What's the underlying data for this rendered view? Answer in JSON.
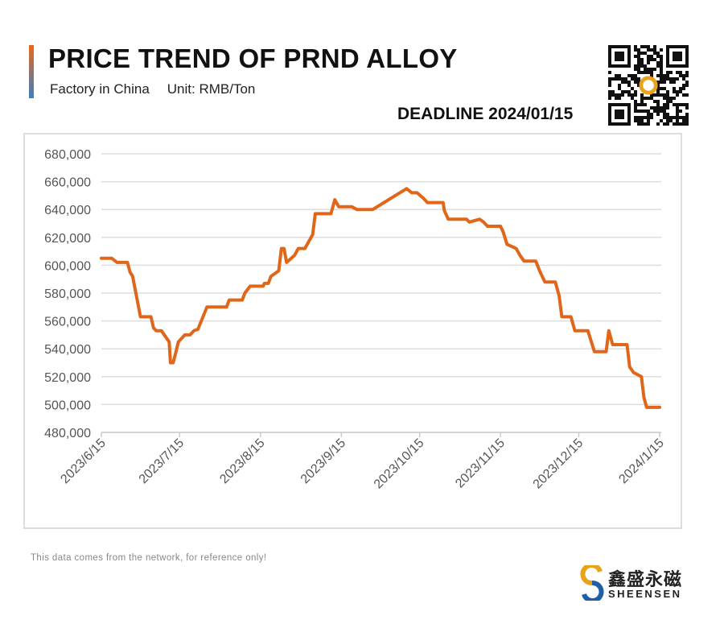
{
  "header": {
    "title": "PRICE TREND OF PRND ALLOY",
    "subtitle_market": "Factory in China",
    "subtitle_unit": "Unit: RMB/Ton",
    "deadline": "DEADLINE 2024/01/15"
  },
  "footer": {
    "note": "This data comes from the network, for reference only!",
    "brand_cn": "鑫盛永磁",
    "brand_en": "SHEENSEN"
  },
  "colors": {
    "line": "#e0661a",
    "grid": "#dddddd",
    "accent_top": "#e8671b",
    "accent_bottom": "#3b7fc4"
  },
  "chart_data": {
    "type": "line",
    "title": "PRICE TREND OF PRND ALLOY",
    "xlabel": "",
    "ylabel": "RMB/Ton",
    "ylim": [
      480000,
      680000
    ],
    "yticks": [
      480000,
      500000,
      520000,
      540000,
      560000,
      580000,
      600000,
      620000,
      640000,
      660000,
      680000
    ],
    "ytick_labels": [
      "480,000",
      "500,000",
      "520,000",
      "540,000",
      "560,000",
      "580,000",
      "600,000",
      "620,000",
      "640,000",
      "660,000",
      "680,000"
    ],
    "xlim_days": [
      0,
      214
    ],
    "x_unit": "days since 2023/6/15",
    "xticks": [
      0,
      30,
      61,
      92,
      122,
      153,
      183,
      214
    ],
    "xtick_labels": [
      "2023/6/15",
      "2023/7/15",
      "2023/8/15",
      "2023/9/15",
      "2023/10/15",
      "2023/11/15",
      "2023/12/15",
      "2024/1/15"
    ],
    "grid": true,
    "series": [
      {
        "name": "PrNd Alloy",
        "points": [
          [
            0,
            605000
          ],
          [
            4,
            605000
          ],
          [
            6,
            602000
          ],
          [
            10,
            602000
          ],
          [
            11,
            595000
          ],
          [
            12,
            592000
          ],
          [
            15,
            563000
          ],
          [
            19,
            563000
          ],
          [
            20,
            555000
          ],
          [
            21,
            553000
          ],
          [
            23,
            553000
          ],
          [
            26,
            545000
          ],
          [
            26.5,
            530000
          ],
          [
            27.5,
            530000
          ],
          [
            28.5,
            537000
          ],
          [
            29.5,
            545000
          ],
          [
            32,
            550000
          ],
          [
            34,
            550000
          ],
          [
            35.5,
            553000
          ],
          [
            37,
            554000
          ],
          [
            40.5,
            570000
          ],
          [
            48,
            570000
          ],
          [
            49,
            575000
          ],
          [
            54,
            575000
          ],
          [
            55,
            580000
          ],
          [
            57,
            585000
          ],
          [
            62,
            585000
          ],
          [
            62.5,
            587000
          ],
          [
            64,
            587000
          ],
          [
            65,
            592000
          ],
          [
            68,
            596000
          ],
          [
            69,
            612000
          ],
          [
            70,
            612000
          ],
          [
            71,
            602000
          ],
          [
            74,
            607000
          ],
          [
            75.5,
            612000
          ],
          [
            78,
            612000
          ],
          [
            81,
            622000
          ],
          [
            82,
            637000
          ],
          [
            88,
            637000
          ],
          [
            89.5,
            647000
          ],
          [
            91,
            642000
          ],
          [
            96,
            642000
          ],
          [
            98,
            640000
          ],
          [
            104,
            640000
          ],
          [
            117,
            655000
          ],
          [
            119,
            652000
          ],
          [
            121,
            652000
          ],
          [
            123.5,
            648000
          ],
          [
            125,
            645000
          ],
          [
            131,
            645000
          ],
          [
            131.5,
            639000
          ],
          [
            133,
            633000
          ],
          [
            140,
            633000
          ],
          [
            141,
            631000
          ],
          [
            145,
            633000
          ],
          [
            146.5,
            631000
          ],
          [
            148,
            628000
          ],
          [
            153,
            628000
          ],
          [
            154,
            624000
          ],
          [
            155.5,
            615000
          ],
          [
            159,
            612000
          ],
          [
            160.5,
            607000
          ],
          [
            162,
            603000
          ],
          [
            166.5,
            603000
          ],
          [
            168,
            596000
          ],
          [
            170,
            588000
          ],
          [
            174,
            588000
          ],
          [
            175.5,
            578000
          ],
          [
            176.5,
            563000
          ],
          [
            180,
            563000
          ],
          [
            181.5,
            553000
          ],
          [
            186.5,
            553000
          ],
          [
            189,
            538000
          ],
          [
            193.5,
            538000
          ],
          [
            194.5,
            553000
          ],
          [
            196,
            543000
          ],
          [
            201.5,
            543000
          ],
          [
            202.5,
            527000
          ],
          [
            204,
            523000
          ],
          [
            207,
            520000
          ],
          [
            208,
            505000
          ],
          [
            209,
            498000
          ],
          [
            214,
            498000
          ]
        ]
      }
    ]
  }
}
